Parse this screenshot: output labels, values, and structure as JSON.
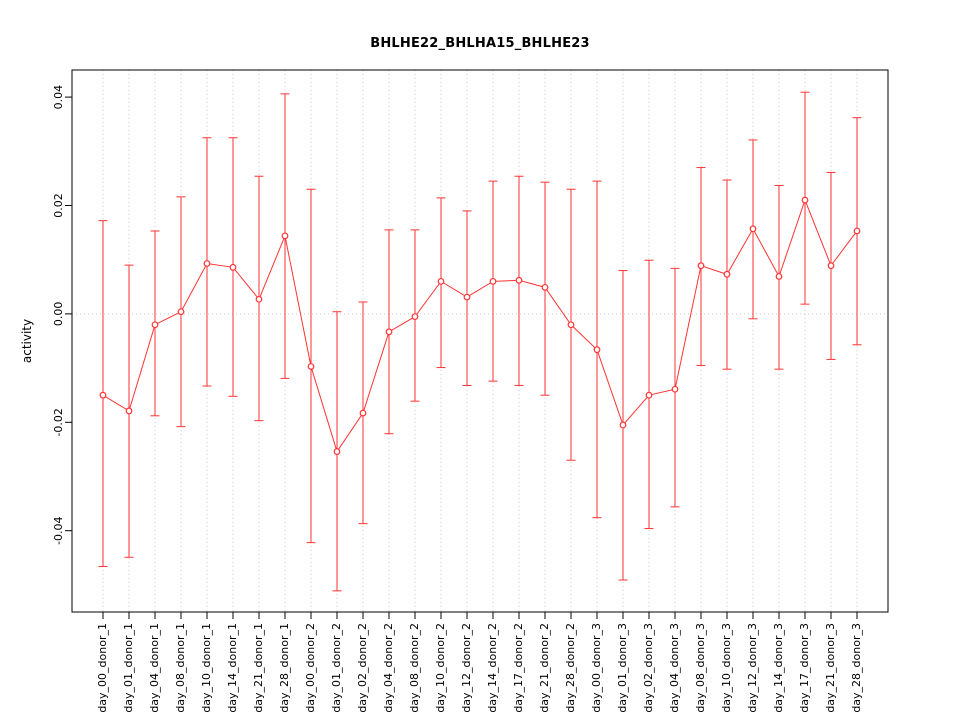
{
  "chart_data": {
    "type": "line",
    "title": "BHLHE22_BHLHA15_BHLHE23",
    "xlabel": "",
    "ylabel": "activity",
    "ylim": [
      -0.055,
      0.045
    ],
    "yticks": [
      -0.04,
      -0.02,
      0.0,
      0.02,
      0.04
    ],
    "ytick_labels": [
      "-0.04",
      "-0.02",
      "0.00",
      "0.02",
      "0.04"
    ],
    "grid": "dotted vertical line at each category; dotted horizontal line at y=0",
    "legend": "none",
    "marker": "open-circle",
    "error_bars": true,
    "categories": [
      "day_00_donor_1",
      "day_01_donor_1",
      "day_04_donor_1",
      "day_08_donor_1",
      "day_10_donor_1",
      "day_14_donor_1",
      "day_21_donor_1",
      "day_28_donor_1",
      "day_00_donor_2",
      "day_01_donor_2",
      "day_02_donor_2",
      "day_04_donor_2",
      "day_08_donor_2",
      "day_10_donor_2",
      "day_12_donor_2",
      "day_14_donor_2",
      "day_17_donor_2",
      "day_21_donor_2",
      "day_28_donor_2",
      "day_00_donor_3",
      "day_01_donor_3",
      "day_02_donor_3",
      "day_04_donor_3",
      "day_08_donor_3",
      "day_10_donor_3",
      "day_12_donor_3",
      "day_14_donor_3",
      "day_17_donor_3",
      "day_21_donor_3",
      "day_28_donor_3"
    ],
    "series": [
      {
        "name": "activity",
        "values": [
          -0.015,
          -0.0179,
          -0.002,
          0.0004,
          0.0093,
          0.0086,
          0.0027,
          0.0144,
          -0.0097,
          -0.0254,
          -0.0183,
          -0.0033,
          -0.0005,
          0.006,
          0.0031,
          0.006,
          0.0062,
          0.0049,
          -0.002,
          -0.0066,
          -0.0205,
          -0.015,
          -0.0139,
          0.0089,
          0.0073,
          0.0157,
          0.0069,
          0.021,
          0.0089,
          0.0153
        ],
        "upper": [
          0.0172,
          0.009,
          0.0153,
          0.0216,
          0.0325,
          0.0325,
          0.0254,
          0.0406,
          0.023,
          0.0004,
          0.0022,
          0.0155,
          0.0155,
          0.0214,
          0.019,
          0.0245,
          0.0254,
          0.0243,
          0.023,
          0.0245,
          0.008,
          0.0099,
          0.0084,
          0.027,
          0.0247,
          0.0321,
          0.0237,
          0.0409,
          0.0261,
          0.0362
        ],
        "lower": [
          -0.0466,
          -0.0449,
          -0.0188,
          -0.0208,
          -0.0133,
          -0.0152,
          -0.0197,
          -0.0119,
          -0.0422,
          -0.0511,
          -0.0387,
          -0.0221,
          -0.0161,
          -0.0099,
          -0.0132,
          -0.0124,
          -0.0132,
          -0.015,
          -0.027,
          -0.0376,
          -0.0491,
          -0.0396,
          -0.0356,
          -0.0095,
          -0.0102,
          -0.0009,
          -0.0102,
          0.0018,
          -0.0084,
          -0.0057
        ]
      }
    ],
    "colors": {
      "series": "#ff3333",
      "grid": "#c8c8c8",
      "axis": "#000000",
      "background": "#ffffff"
    }
  }
}
